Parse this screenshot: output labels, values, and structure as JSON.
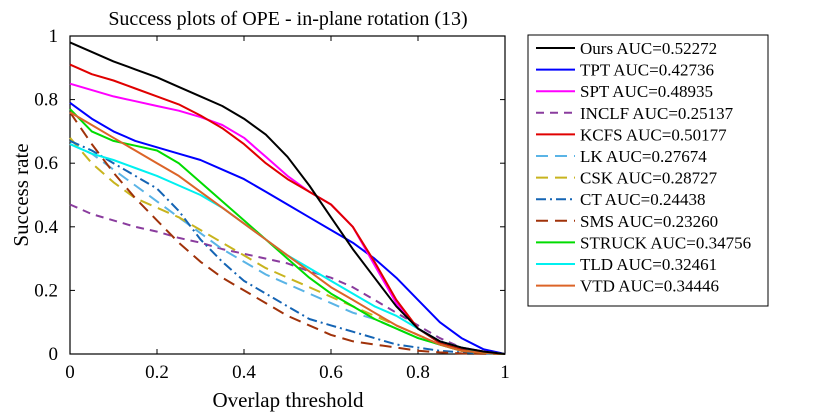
{
  "chart_data": {
    "type": "line",
    "title": "Success plots of OPE - in-plane rotation (13)",
    "xlabel": "Overlap threshold",
    "ylabel": "Success rate",
    "xlim": [
      0,
      1
    ],
    "ylim": [
      0,
      1
    ],
    "xticks": [
      "0",
      "0.2",
      "0.4",
      "0.6",
      "0.8",
      "1"
    ],
    "yticks": [
      "0",
      "0.2",
      "0.4",
      "0.6",
      "0.8",
      "1"
    ],
    "legend_position": "outside-right",
    "x": [
      0,
      0.05,
      0.1,
      0.15,
      0.2,
      0.25,
      0.3,
      0.35,
      0.4,
      0.45,
      0.5,
      0.55,
      0.6,
      0.65,
      0.7,
      0.75,
      0.8,
      0.85,
      0.9,
      0.95,
      1.0
    ],
    "series": [
      {
        "name": "Ours AUC=0.52272",
        "color": "#000000",
        "dash": "solid",
        "values": [
          0.98,
          0.95,
          0.92,
          0.895,
          0.87,
          0.84,
          0.81,
          0.78,
          0.74,
          0.69,
          0.62,
          0.53,
          0.43,
          0.33,
          0.24,
          0.15,
          0.08,
          0.04,
          0.02,
          0.008,
          0.0
        ]
      },
      {
        "name": "TPT AUC=0.42736",
        "color": "#0000ff",
        "dash": "solid",
        "values": [
          0.79,
          0.74,
          0.7,
          0.67,
          0.65,
          0.63,
          0.61,
          0.58,
          0.55,
          0.51,
          0.47,
          0.43,
          0.39,
          0.35,
          0.3,
          0.24,
          0.17,
          0.1,
          0.05,
          0.015,
          0.0
        ]
      },
      {
        "name": "SPT AUC=0.48935",
        "color": "#ff00ff",
        "dash": "solid",
        "values": [
          0.85,
          0.83,
          0.81,
          0.795,
          0.78,
          0.765,
          0.745,
          0.72,
          0.68,
          0.62,
          0.56,
          0.51,
          0.47,
          0.4,
          0.28,
          0.16,
          0.08,
          0.04,
          0.02,
          0.008,
          0.0
        ]
      },
      {
        "name": "INCLF AUC=0.25137",
        "color": "#8a3c9e",
        "dash": "8,6",
        "values": [
          0.47,
          0.44,
          0.42,
          0.4,
          0.385,
          0.365,
          0.35,
          0.33,
          0.315,
          0.3,
          0.285,
          0.26,
          0.24,
          0.21,
          0.17,
          0.13,
          0.09,
          0.05,
          0.02,
          0.008,
          0.0
        ]
      },
      {
        "name": "KCFS AUC=0.50177",
        "color": "#e00000",
        "dash": "solid",
        "values": [
          0.91,
          0.88,
          0.86,
          0.835,
          0.81,
          0.785,
          0.75,
          0.71,
          0.66,
          0.6,
          0.55,
          0.51,
          0.47,
          0.4,
          0.29,
          0.17,
          0.08,
          0.035,
          0.015,
          0.005,
          0.0
        ]
      },
      {
        "name": "LK AUC=0.27674",
        "color": "#5ab4e6",
        "dash": "12,7",
        "values": [
          0.66,
          0.63,
          0.58,
          0.53,
          0.48,
          0.43,
          0.38,
          0.33,
          0.29,
          0.25,
          0.22,
          0.19,
          0.16,
          0.13,
          0.11,
          0.08,
          0.05,
          0.03,
          0.01,
          0.004,
          0.0
        ]
      },
      {
        "name": "CSK AUC=0.28727",
        "color": "#c8b41e",
        "dash": "12,7",
        "values": [
          0.68,
          0.6,
          0.54,
          0.49,
          0.46,
          0.43,
          0.39,
          0.35,
          0.31,
          0.27,
          0.24,
          0.21,
          0.18,
          0.15,
          0.12,
          0.09,
          0.06,
          0.03,
          0.01,
          0.004,
          0.0
        ]
      },
      {
        "name": "CT AUC=0.24438",
        "color": "#1464b4",
        "dash": "10,4,2,4",
        "values": [
          0.67,
          0.64,
          0.6,
          0.56,
          0.52,
          0.45,
          0.36,
          0.29,
          0.23,
          0.19,
          0.15,
          0.11,
          0.09,
          0.07,
          0.05,
          0.03,
          0.02,
          0.01,
          0.005,
          0.002,
          0.0
        ]
      },
      {
        "name": "SMS AUC=0.23260",
        "color": "#a0320a",
        "dash": "12,7",
        "values": [
          0.76,
          0.66,
          0.57,
          0.49,
          0.42,
          0.35,
          0.29,
          0.24,
          0.2,
          0.16,
          0.12,
          0.09,
          0.06,
          0.04,
          0.03,
          0.02,
          0.01,
          0.005,
          0.002,
          0.001,
          0.0
        ]
      },
      {
        "name": "STRUCK AUC=0.34756",
        "color": "#00dc00",
        "dash": "solid",
        "values": [
          0.77,
          0.7,
          0.67,
          0.655,
          0.64,
          0.6,
          0.54,
          0.48,
          0.42,
          0.36,
          0.3,
          0.24,
          0.19,
          0.15,
          0.11,
          0.08,
          0.05,
          0.03,
          0.01,
          0.004,
          0.0
        ]
      },
      {
        "name": "TLD AUC=0.32461",
        "color": "#00f0f0",
        "dash": "solid",
        "values": [
          0.66,
          0.63,
          0.61,
          0.585,
          0.56,
          0.53,
          0.5,
          0.46,
          0.41,
          0.36,
          0.31,
          0.27,
          0.23,
          0.19,
          0.15,
          0.12,
          0.08,
          0.04,
          0.02,
          0.007,
          0.0
        ]
      },
      {
        "name": "VTD AUC=0.34446",
        "color": "#dc6428",
        "dash": "solid",
        "values": [
          0.76,
          0.72,
          0.68,
          0.64,
          0.6,
          0.56,
          0.51,
          0.46,
          0.41,
          0.36,
          0.31,
          0.26,
          0.21,
          0.17,
          0.13,
          0.09,
          0.06,
          0.03,
          0.01,
          0.004,
          0.0
        ]
      }
    ]
  }
}
